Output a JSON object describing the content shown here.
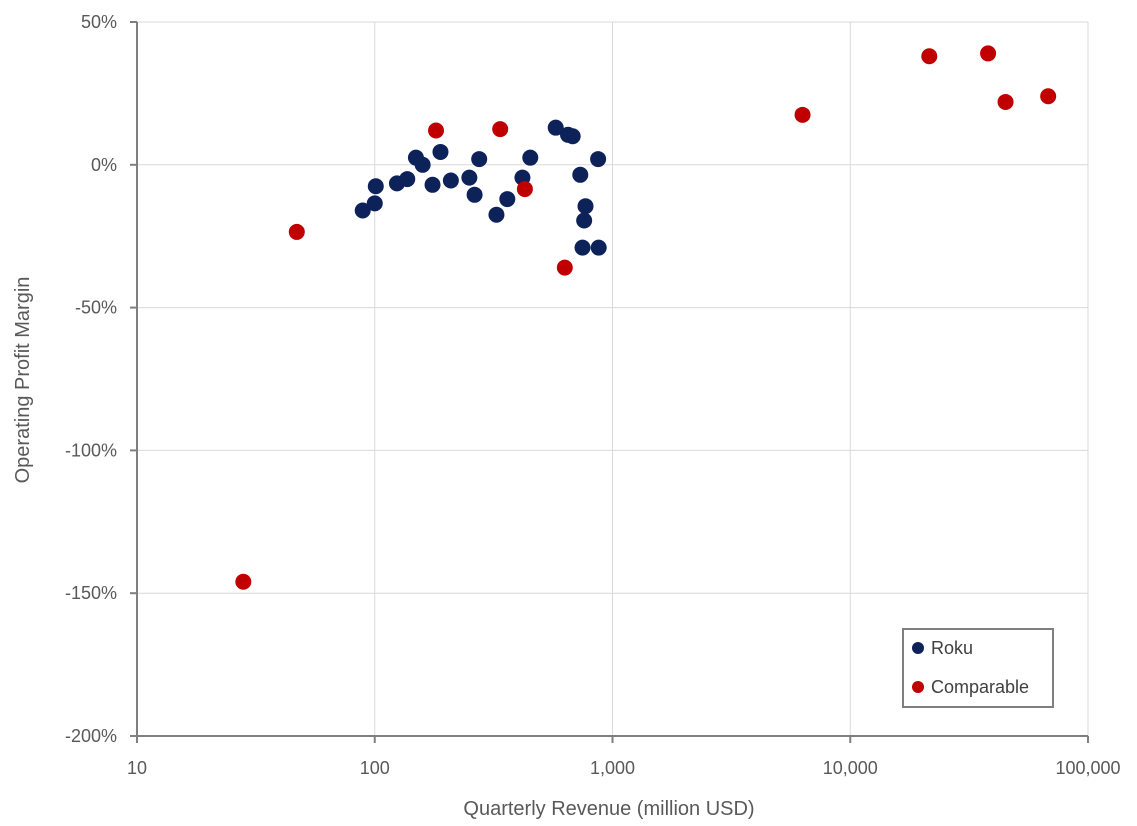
{
  "chart_data": {
    "type": "scatter",
    "title": "",
    "xlabel": "Quarterly Revenue (million USD)",
    "ylabel": "Operating Profit Margin",
    "x_scale": "log",
    "xlim": [
      10,
      100000
    ],
    "ylim": [
      -200,
      50
    ],
    "x_ticks": [
      10,
      100,
      1000,
      10000,
      100000
    ],
    "x_tick_labels": [
      "10",
      "100",
      "1,000",
      "10,000",
      "100,000"
    ],
    "y_ticks": [
      50,
      0,
      -50,
      -100,
      -150,
      -200
    ],
    "y_tick_labels": [
      "50%",
      "0%",
      "-50%",
      "-100%",
      "-150%",
      "-200%"
    ],
    "grid": true,
    "legend_position": "bottom-right",
    "series": [
      {
        "name": "Roku",
        "color": "#0d2258",
        "points": [
          [
            89,
            -16
          ],
          [
            100,
            -13.5
          ],
          [
            101,
            -7.5
          ],
          [
            124,
            -6.5
          ],
          [
            137,
            -5
          ],
          [
            149,
            2.5
          ],
          [
            159,
            0
          ],
          [
            175,
            -7
          ],
          [
            189,
            4.5
          ],
          [
            209,
            -5.5
          ],
          [
            250,
            -4.5
          ],
          [
            263,
            -10.5
          ],
          [
            275,
            2
          ],
          [
            325,
            -17.5
          ],
          [
            361,
            -12
          ],
          [
            418,
            -4.5
          ],
          [
            451,
            2.5
          ],
          [
            577,
            13
          ],
          [
            650,
            10.5
          ],
          [
            680,
            10
          ],
          [
            732,
            -3.5
          ],
          [
            748,
            -29
          ],
          [
            760,
            -19.5
          ],
          [
            770,
            -14.5
          ],
          [
            870,
            2
          ],
          [
            875,
            -29
          ]
        ]
      },
      {
        "name": "Comparable",
        "color": "#c00000",
        "points": [
          [
            28,
            -146
          ],
          [
            47,
            -23.5
          ],
          [
            181,
            12
          ],
          [
            337,
            12.5
          ],
          [
            428,
            -8.5
          ],
          [
            630,
            -36
          ],
          [
            6300,
            17.5
          ],
          [
            21500,
            38
          ],
          [
            38000,
            39
          ],
          [
            45000,
            22
          ],
          [
            68000,
            24
          ]
        ]
      }
    ]
  }
}
